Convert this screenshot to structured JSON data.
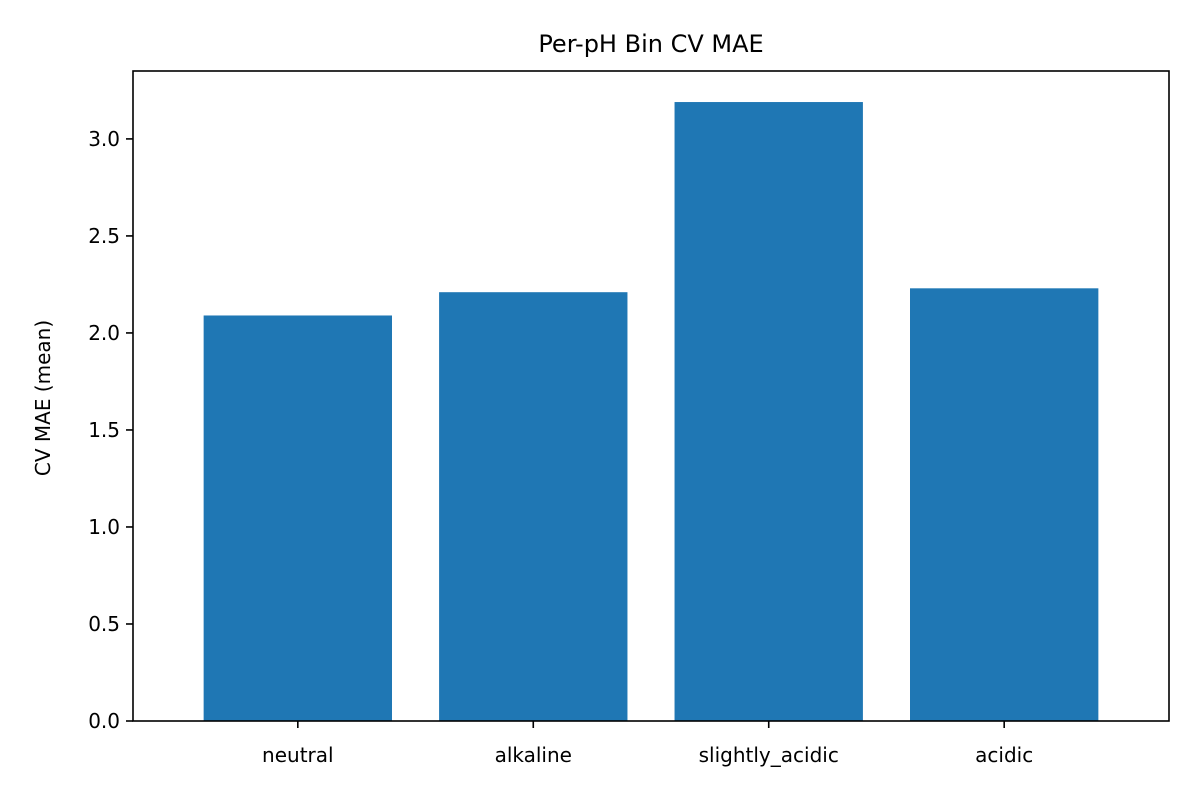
{
  "chart_data": {
    "type": "bar",
    "title": "Per-pH Bin CV MAE",
    "xlabel": "",
    "ylabel": "CV MAE (mean)",
    "categories": [
      "neutral",
      "alkaline",
      "slightly_acidic",
      "acidic"
    ],
    "values": [
      2.09,
      2.21,
      3.19,
      2.23
    ],
    "ylim": [
      0,
      3.35
    ],
    "yticks": [
      "0.0",
      "0.5",
      "1.0",
      "1.5",
      "2.0",
      "2.5",
      "3.0"
    ],
    "grid": false,
    "bar_color": "#1f77b4"
  }
}
